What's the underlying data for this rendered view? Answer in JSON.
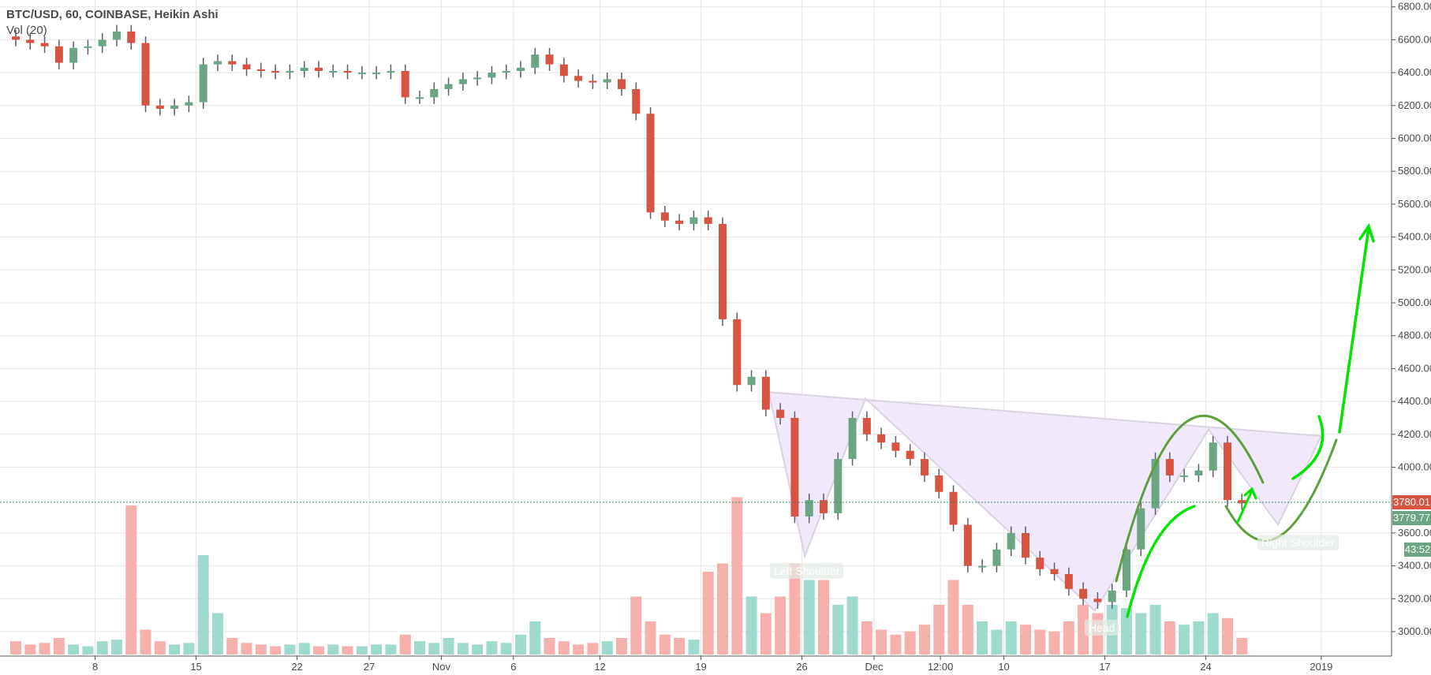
{
  "legend": {
    "title": "BTC/USD, 60, COINBASE, Heikin Ashi",
    "indicator": "Vol (20)"
  },
  "price_tags": {
    "last": "3780.01",
    "bid": "3779.77",
    "countdown": "43:52"
  },
  "colors": {
    "up": "#6ba583",
    "down": "#d75442",
    "wick": "#5d606b",
    "vol_up": "#8fd4c7",
    "vol_down": "#f5a3a0",
    "last_price": "#d75442",
    "pattern_fill": "#efe4fb",
    "curve_dark": "#5e9e3c",
    "curve_bright": "#00e600"
  },
  "pattern_labels": {
    "left": "Left Shoulder",
    "head": "Head",
    "right": "Right Shoulder"
  },
  "chart_data": {
    "type": "candlestick",
    "symbol": "BTC/USD",
    "interval": "60",
    "ylim": [
      2900,
      6850
    ],
    "y_ticks": [
      "6800.00",
      "6600.00",
      "6400.00",
      "6200.00",
      "6000.00",
      "5800.00",
      "5600.00",
      "5400.00",
      "5200.00",
      "5000.00",
      "4800.00",
      "4600.00",
      "4400.00",
      "4200.00",
      "4000.00",
      "3600.00",
      "3400.00",
      "3200.00",
      "3000.00"
    ],
    "y_tick_values": [
      6800,
      6600,
      6400,
      6200,
      6000,
      5800,
      5600,
      5400,
      5200,
      5000,
      4800,
      4600,
      4400,
      4200,
      4000,
      3600,
      3400,
      3200,
      3000
    ],
    "x_ticks": [
      {
        "label": "8",
        "date": "2018-10-08"
      },
      {
        "label": "15",
        "date": "2018-10-15"
      },
      {
        "label": "22",
        "date": "2018-10-22"
      },
      {
        "label": "27",
        "date": "2018-10-27"
      },
      {
        "label": "Nov",
        "date": "2018-11-01"
      },
      {
        "label": "6",
        "date": "2018-11-06"
      },
      {
        "label": "12",
        "date": "2018-11-12"
      },
      {
        "label": "19",
        "date": "2018-11-19"
      },
      {
        "label": "26",
        "date": "2018-11-26"
      },
      {
        "label": "Dec",
        "date": "2018-12-01"
      },
      {
        "label": "12:00",
        "date": "2018-12-05.6"
      },
      {
        "label": "10",
        "date": "2018-12-10"
      },
      {
        "label": "17",
        "date": "2018-12-17"
      },
      {
        "label": "24",
        "date": "2018-12-24"
      },
      {
        "label": "2019",
        "date": "2019-01-01"
      }
    ],
    "start_date": "2018-10-02",
    "closes": [
      6600,
      6580,
      6560,
      6460,
      6550,
      6560,
      6600,
      6650,
      6580,
      6200,
      6180,
      6200,
      6220,
      6450,
      6470,
      6450,
      6420,
      6410,
      6400,
      6410,
      6430,
      6410,
      6410,
      6400,
      6400,
      6400,
      6410,
      6250,
      6250,
      6300,
      6330,
      6360,
      6370,
      6400,
      6410,
      6430,
      6510,
      6450,
      6380,
      6350,
      6340,
      6360,
      6300,
      6150,
      5550,
      5500,
      5480,
      5520,
      5480,
      4900,
      4500,
      4550,
      4350,
      4300,
      3700,
      3800,
      3720,
      4050,
      4300,
      4200,
      4150,
      4100,
      4050,
      3950,
      3850,
      3650,
      3400,
      3400,
      3500,
      3600,
      3450,
      3380,
      3350,
      3260,
      3200,
      3180,
      3250,
      3500,
      3750,
      4050,
      3950,
      3950,
      3980,
      4150,
      3800,
      3780
    ],
    "volume_level": [
      0.08,
      0.06,
      0.07,
      0.1,
      0.06,
      0.05,
      0.08,
      0.09,
      0.9,
      0.15,
      0.08,
      0.06,
      0.07,
      0.6,
      0.25,
      0.1,
      0.07,
      0.06,
      0.05,
      0.06,
      0.07,
      0.05,
      0.06,
      0.05,
      0.05,
      0.06,
      0.06,
      0.12,
      0.08,
      0.07,
      0.1,
      0.07,
      0.06,
      0.08,
      0.07,
      0.12,
      0.2,
      0.1,
      0.08,
      0.06,
      0.07,
      0.08,
      0.1,
      0.35,
      0.2,
      0.12,
      0.1,
      0.09,
      0.5,
      0.55,
      0.95,
      0.35,
      0.25,
      0.35,
      0.55,
      0.45,
      0.45,
      0.3,
      0.35,
      0.2,
      0.15,
      0.12,
      0.14,
      0.18,
      0.3,
      0.45,
      0.3,
      0.2,
      0.15,
      0.2,
      0.18,
      0.15,
      0.14,
      0.2,
      0.3,
      0.25,
      0.3,
      0.28,
      0.25,
      0.3,
      0.2,
      0.18,
      0.2,
      0.25,
      0.22,
      0.1
    ],
    "last_price": 3780.01,
    "pattern": {
      "name_labels": [
        "Left Shoulder",
        "Head",
        "Right Shoulder"
      ],
      "points": [
        [
          "2018-11-23.7",
          4457
        ],
        [
          "2018-11-26.2",
          3459
        ],
        [
          "2018-11-30.4",
          4418
        ],
        [
          "2018-12-16.3",
          3127
        ],
        [
          "2018-12-24.2",
          4230
        ],
        [
          "2018-12-29",
          3650
        ],
        [
          "2019-01-01",
          4190
        ]
      ]
    }
  }
}
